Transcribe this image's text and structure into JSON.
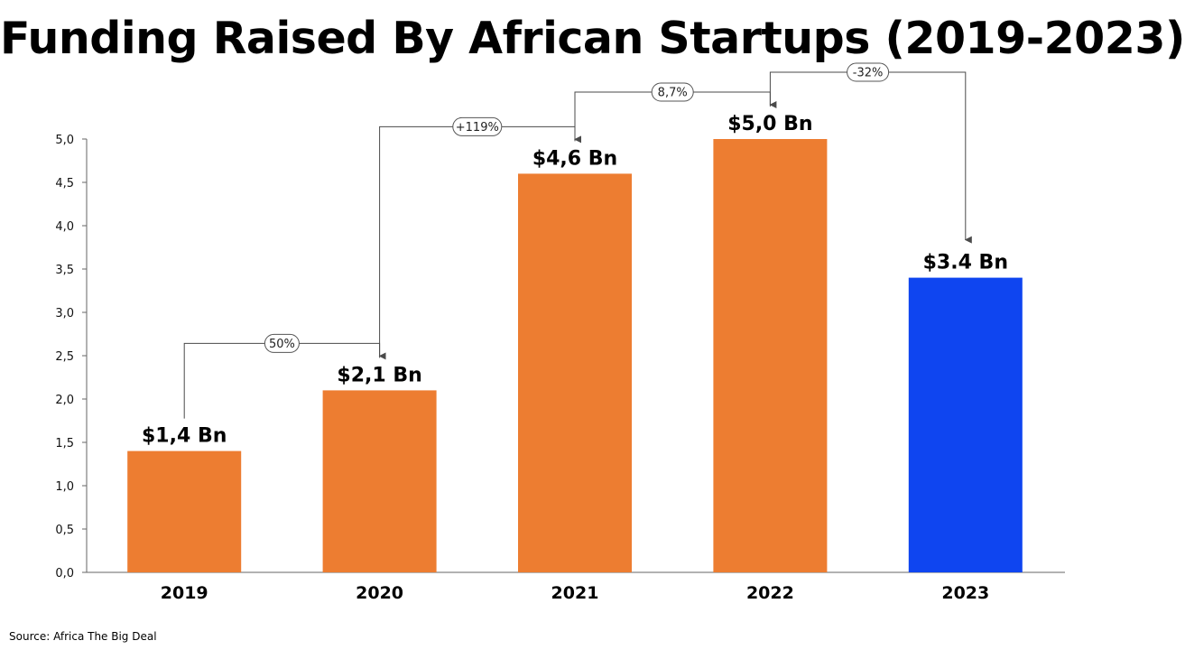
{
  "source_note": "Source: Africa The Big Deal",
  "chart_data": {
    "type": "bar",
    "title": "Funding Raised By African Startups (2019-2023)",
    "xlabel": "",
    "ylabel": "",
    "ylim": [
      0,
      5.0
    ],
    "y_ticks": [
      "0,0",
      "0,5",
      "1,0",
      "1,5",
      "2,0",
      "2,5",
      "3,0",
      "3,5",
      "4,0",
      "4,5",
      "5,0"
    ],
    "categories": [
      "2019",
      "2020",
      "2021",
      "2022",
      "2023"
    ],
    "values": [
      1.4,
      2.1,
      4.6,
      5.0,
      3.4
    ],
    "data_labels": [
      "$1,4 Bn",
      "$2,1 Bn",
      "$4,6 Bn",
      "$5,0 Bn",
      "$3.4 Bn"
    ],
    "bar_colors": [
      "#ED7D31",
      "#ED7D31",
      "#ED7D31",
      "#ED7D31",
      "#0F45F0"
    ],
    "changes": [
      {
        "from": "2019",
        "to": "2020",
        "label": "50%"
      },
      {
        "from": "2020",
        "to": "2021",
        "label": "+119%"
      },
      {
        "from": "2021",
        "to": "2022",
        "label": "8,7%"
      },
      {
        "from": "2022",
        "to": "2023",
        "label": "-32%"
      }
    ],
    "grid": false,
    "legend": "none"
  }
}
